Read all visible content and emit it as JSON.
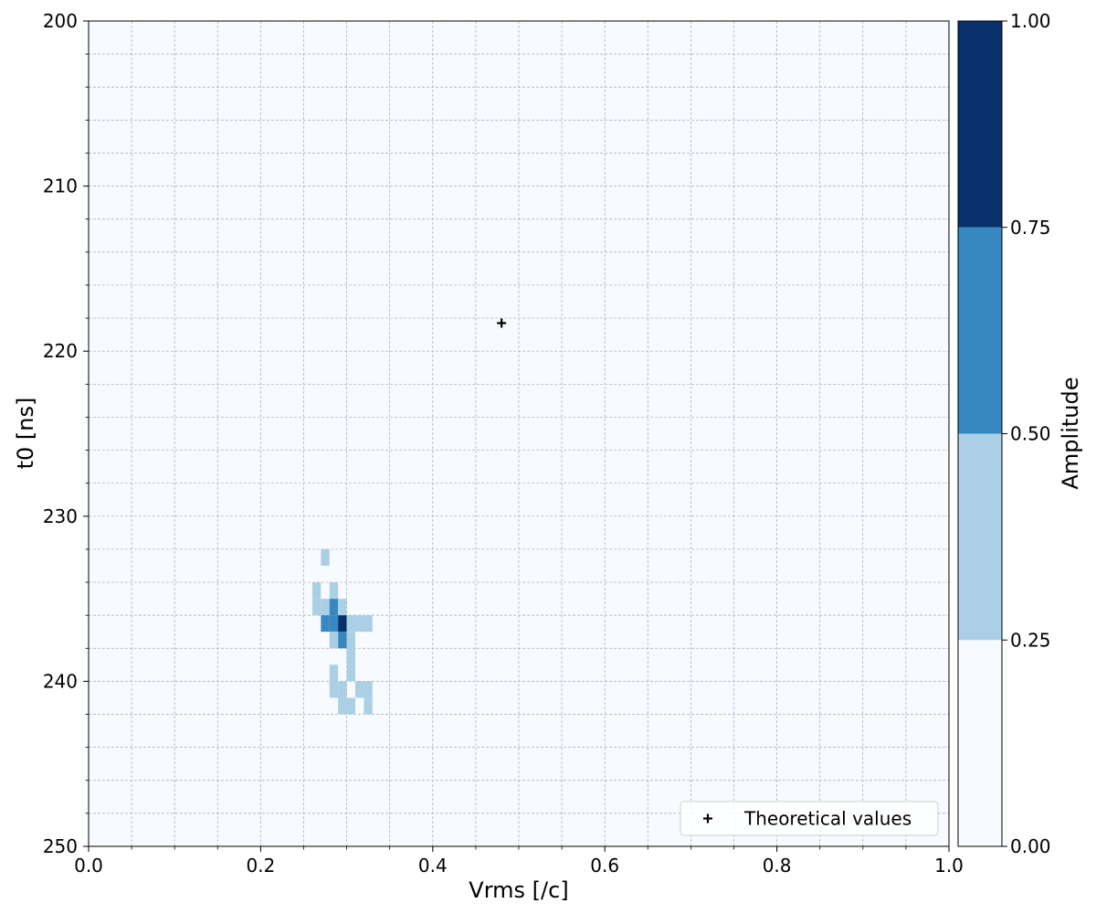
{
  "chart_data": {
    "type": "heatmap",
    "title": "",
    "xlabel": "Vrms [/c]",
    "ylabel": "t0 [ns]",
    "xlim": [
      0.0,
      1.0
    ],
    "ylim": [
      250,
      200
    ],
    "y_inverted": true,
    "x_major_ticks": [
      0.0,
      0.2,
      0.4,
      0.6,
      0.8,
      1.0
    ],
    "x_tick_labels": [
      "0.0",
      "0.2",
      "0.4",
      "0.6",
      "0.8",
      "1.0"
    ],
    "x_minor_ticks": [
      0.05,
      0.1,
      0.15,
      0.25,
      0.3,
      0.35,
      0.45,
      0.5,
      0.55,
      0.65,
      0.7,
      0.75,
      0.85,
      0.9,
      0.95
    ],
    "y_major_ticks": [
      200,
      210,
      220,
      230,
      240,
      250
    ],
    "y_tick_labels": [
      "200",
      "210",
      "220",
      "230",
      "240",
      "250"
    ],
    "y_minor_ticks": [
      202,
      204,
      206,
      208,
      212,
      214,
      216,
      218,
      222,
      224,
      226,
      228,
      232,
      234,
      236,
      238,
      242,
      244,
      246,
      248
    ],
    "grid": true,
    "background_color": "#f7fbff",
    "cell_size": {
      "dx": 0.01,
      "dt": 1.0
    },
    "cells": [
      {
        "x": 0.27,
        "t": 232,
        "amplitude": 0.4
      },
      {
        "x": 0.26,
        "t": 234,
        "amplitude": 0.4
      },
      {
        "x": 0.28,
        "t": 234,
        "amplitude": 0.4
      },
      {
        "x": 0.26,
        "t": 235,
        "amplitude": 0.4
      },
      {
        "x": 0.27,
        "t": 235,
        "amplitude": 0.4
      },
      {
        "x": 0.28,
        "t": 235,
        "amplitude": 0.6
      },
      {
        "x": 0.29,
        "t": 235,
        "amplitude": 0.4
      },
      {
        "x": 0.27,
        "t": 236,
        "amplitude": 0.6
      },
      {
        "x": 0.28,
        "t": 236,
        "amplitude": 0.6
      },
      {
        "x": 0.29,
        "t": 236,
        "amplitude": 1.0
      },
      {
        "x": 0.3,
        "t": 236,
        "amplitude": 0.4
      },
      {
        "x": 0.31,
        "t": 236,
        "amplitude": 0.4
      },
      {
        "x": 0.32,
        "t": 236,
        "amplitude": 0.4
      },
      {
        "x": 0.28,
        "t": 237,
        "amplitude": 0.4
      },
      {
        "x": 0.29,
        "t": 237,
        "amplitude": 0.6
      },
      {
        "x": 0.3,
        "t": 237,
        "amplitude": 0.4
      },
      {
        "x": 0.3,
        "t": 238,
        "amplitude": 0.4
      },
      {
        "x": 0.28,
        "t": 239,
        "amplitude": 0.4
      },
      {
        "x": 0.3,
        "t": 239,
        "amplitude": 0.4
      },
      {
        "x": 0.28,
        "t": 240,
        "amplitude": 0.4
      },
      {
        "x": 0.29,
        "t": 240,
        "amplitude": 0.4
      },
      {
        "x": 0.31,
        "t": 240,
        "amplitude": 0.4
      },
      {
        "x": 0.32,
        "t": 240,
        "amplitude": 0.4
      },
      {
        "x": 0.29,
        "t": 241,
        "amplitude": 0.4
      },
      {
        "x": 0.3,
        "t": 241,
        "amplitude": 0.4
      },
      {
        "x": 0.32,
        "t": 241,
        "amplitude": 0.4
      }
    ],
    "markers": [
      {
        "name": "Theoretical values",
        "x": 0.48,
        "y": 218.3,
        "symbol": "plus",
        "color": "#000000"
      }
    ],
    "legend": {
      "placement": "lower-right",
      "entries": [
        "Theoretical values"
      ]
    },
    "colorbar": {
      "label": "Amplitude",
      "range": [
        0.0,
        1.0
      ],
      "ticks": [
        0.0,
        0.25,
        0.5,
        0.75,
        1.0
      ],
      "tick_labels": [
        "0.00",
        "0.25",
        "0.50",
        "0.75",
        "1.00"
      ],
      "levels": [
        {
          "from": 0.0,
          "to": 0.25,
          "color": "#f7fbff"
        },
        {
          "from": 0.25,
          "to": 0.5,
          "color": "#abd0e6"
        },
        {
          "from": 0.5,
          "to": 0.75,
          "color": "#3787c0"
        },
        {
          "from": 0.75,
          "to": 1.0,
          "color": "#08306b"
        }
      ]
    }
  }
}
